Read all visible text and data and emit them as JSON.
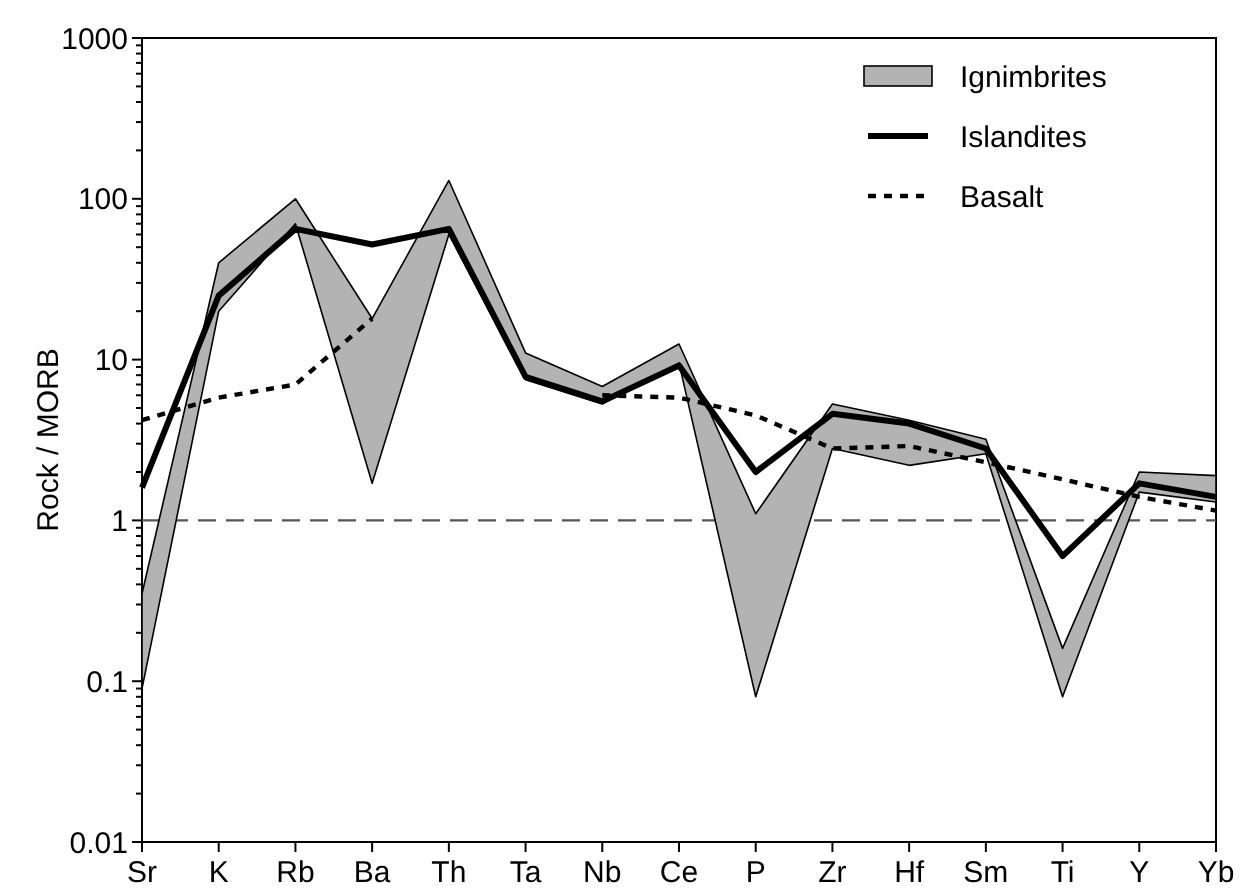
{
  "chart_data": {
    "type": "line",
    "ylabel": "Rock / MORB",
    "log": true,
    "legend": "top right",
    "grid": false,
    "categories": [
      "Sr",
      "K",
      "Rb",
      "Ba",
      "Th",
      "Ta",
      "Nb",
      "Ce",
      "P",
      "Zr",
      "Hf",
      "Sm",
      "Ti",
      "Y",
      "Yb"
    ],
    "ylim": [
      0.01,
      1000
    ],
    "yticks": [
      0.01,
      {
        "value": 0.02,
        "label": null
      },
      {
        "value": 0.03,
        "label": null
      },
      {
        "value": 0.04,
        "label": null
      },
      {
        "value": 0.05,
        "label": null
      },
      {
        "value": 0.06,
        "label": null
      },
      {
        "value": 0.07,
        "label": null
      },
      {
        "value": 0.08,
        "label": null
      },
      {
        "value": 0.09,
        "label": null
      },
      0.1,
      {
        "value": 0.2,
        "label": null
      },
      {
        "value": 0.3,
        "label": null
      },
      {
        "value": 0.4,
        "label": null
      },
      {
        "value": 0.5,
        "label": null
      },
      {
        "value": 0.6,
        "label": null
      },
      {
        "value": 0.7,
        "label": null
      },
      {
        "value": 0.8,
        "label": null
      },
      {
        "value": 0.9,
        "label": null
      },
      1,
      {
        "value": 2,
        "label": null
      },
      {
        "value": 3,
        "label": null
      },
      {
        "value": 4,
        "label": null
      },
      {
        "value": 5,
        "label": null
      },
      {
        "value": 6,
        "label": null
      },
      {
        "value": 7,
        "label": null
      },
      {
        "value": 8,
        "label": null
      },
      {
        "value": 9,
        "label": null
      },
      10,
      {
        "value": 20,
        "label": null
      },
      {
        "value": 30,
        "label": null
      },
      {
        "value": 40,
        "label": null
      },
      {
        "value": 50,
        "label": null
      },
      {
        "value": 60,
        "label": null
      },
      {
        "value": 70,
        "label": null
      },
      {
        "value": 80,
        "label": null
      },
      {
        "value": 90,
        "label": null
      },
      100,
      {
        "value": 200,
        "label": null
      },
      {
        "value": 300,
        "label": null
      },
      {
        "value": 400,
        "label": null
      },
      {
        "value": 500,
        "label": null
      },
      {
        "value": 600,
        "label": null
      },
      {
        "value": 700,
        "label": null
      },
      {
        "value": 800,
        "label": null
      },
      {
        "value": 900,
        "label": null
      },
      1000
    ],
    "ref_lines": [
      {
        "axis": "y",
        "value": 1,
        "color": "#555555",
        "line_style": "dashed"
      }
    ],
    "series": [
      {
        "name": "Ignimbrites",
        "color": "#b3b3b3",
        "values": [
          null,
          null,
          null,
          null,
          null,
          null,
          null,
          null,
          null,
          null,
          null,
          null,
          null,
          null,
          null
        ],
        "upper": [
          0.35,
          40,
          100,
          18,
          130,
          11,
          6.8,
          12.5,
          1.1,
          5.3,
          4.2,
          3.2,
          0.16,
          2.0,
          1.9
        ],
        "lower": [
          0.09,
          20,
          70,
          1.7,
          60,
          7.5,
          5.3,
          9.5,
          0.08,
          2.8,
          2.2,
          2.6,
          0.08,
          1.5,
          1.3
        ]
      },
      {
        "name": "Islandites",
        "type": "line",
        "color": "#000000",
        "line_style": "solid",
        "values": [
          1.6,
          25,
          65,
          52,
          65,
          7.8,
          5.5,
          9.2,
          2.0,
          4.6,
          4.0,
          2.8,
          0.6,
          1.7,
          1.4
        ]
      },
      {
        "name": "Basalt",
        "type": "line",
        "color": "#000000",
        "line_style": "dotted",
        "values": [
          4.2,
          5.8,
          7,
          18,
          null,
          null,
          6,
          5.8,
          4.5,
          2.8,
          2.9,
          2.3,
          1.8,
          1.4,
          1.15
        ]
      }
    ]
  }
}
